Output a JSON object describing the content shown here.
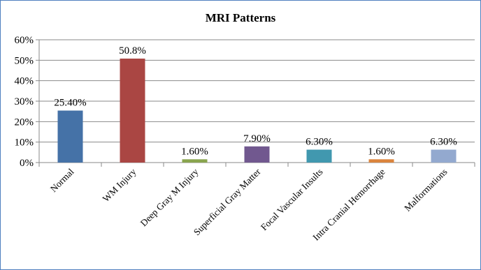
{
  "chart_data": {
    "type": "bar",
    "title": "MRI Patterns",
    "xlabel": "",
    "ylabel": "",
    "ylim": [
      0,
      60
    ],
    "yticks": [
      0,
      10,
      20,
      30,
      40,
      50,
      60
    ],
    "ytick_labels": [
      "0%",
      "10%",
      "20%",
      "30%",
      "40%",
      "50%",
      "60%"
    ],
    "grid": true,
    "legend": "none",
    "categories": [
      "Normal",
      "WM Injury",
      "Deep Gray M Injury",
      "Superficial Gray Matter",
      "Focal Vascular Insults",
      "Intra Cranial Hemorrhage",
      "Malformations"
    ],
    "values": [
      25.4,
      50.8,
      1.6,
      7.9,
      6.3,
      1.6,
      6.3
    ],
    "data_labels": [
      "25.40%",
      "50.8%",
      "1.60%",
      "7.90%",
      "6.30%",
      "1.60%",
      "6.30%"
    ],
    "colors": [
      "#4572a7",
      "#aa4643",
      "#89a54e",
      "#71588f",
      "#4198af",
      "#db843d",
      "#93a9cf"
    ],
    "border_color": "#4f7fbf"
  }
}
